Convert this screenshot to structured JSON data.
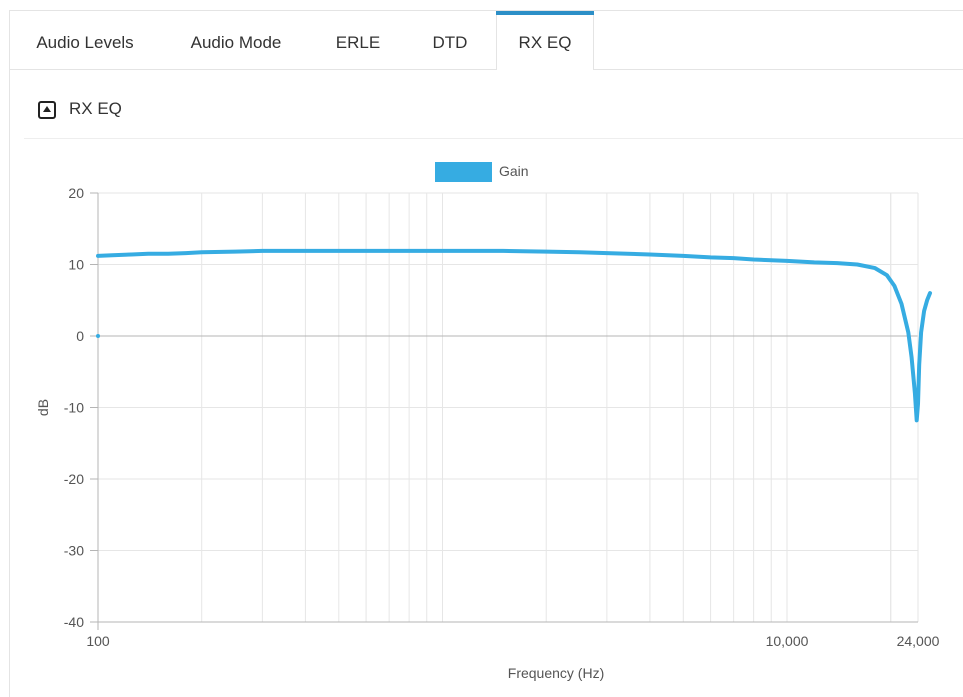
{
  "tabs": [
    {
      "label": "Audio Levels",
      "active": false
    },
    {
      "label": "Audio Mode",
      "active": false
    },
    {
      "label": "ERLE",
      "active": false
    },
    {
      "label": "DTD",
      "active": false
    },
    {
      "label": "RX EQ",
      "active": true
    }
  ],
  "section": {
    "title": "RX EQ",
    "icon": "collapse-up-icon"
  },
  "colors": {
    "accent": "#2c8fc7",
    "series": "#36ace2",
    "grid": "#e6e6e6",
    "zero_line": "#b5b5b5"
  },
  "chart_data": {
    "type": "line",
    "xlabel": "Frequency (Hz)",
    "ylabel": "dB",
    "x_scale": "log",
    "xlim": [
      100,
      27000
    ],
    "ylim": [
      -40,
      20
    ],
    "x_ticks": [
      100,
      10000,
      24000
    ],
    "x_tick_labels": [
      "100",
      "10,000",
      "24,000"
    ],
    "y_ticks": [
      20,
      10,
      0,
      -10,
      -20,
      -30,
      -40
    ],
    "grid": true,
    "legend_position": "top-center",
    "series": [
      {
        "name": "Gain",
        "color": "#36ace2",
        "points": [
          [
            100,
            11.2
          ],
          [
            110,
            11.3
          ],
          [
            125,
            11.4
          ],
          [
            140,
            11.5
          ],
          [
            160,
            11.5
          ],
          [
            180,
            11.6
          ],
          [
            200,
            11.7
          ],
          [
            250,
            11.8
          ],
          [
            300,
            11.9
          ],
          [
            400,
            11.9
          ],
          [
            600,
            11.9
          ],
          [
            1000,
            11.9
          ],
          [
            1500,
            11.9
          ],
          [
            2000,
            11.8
          ],
          [
            2500,
            11.7
          ],
          [
            3000,
            11.6
          ],
          [
            4000,
            11.4
          ],
          [
            5000,
            11.2
          ],
          [
            6000,
            11.0
          ],
          [
            7000,
            10.9
          ],
          [
            8000,
            10.7
          ],
          [
            10000,
            10.5
          ],
          [
            12000,
            10.3
          ],
          [
            14000,
            10.2
          ],
          [
            16000,
            10.0
          ],
          [
            18000,
            9.5
          ],
          [
            19500,
            8.5
          ],
          [
            20500,
            7.0
          ],
          [
            21500,
            4.5
          ],
          [
            22500,
            0.5
          ],
          [
            23000,
            -3.0
          ],
          [
            23500,
            -8.0
          ],
          [
            23800,
            -11.8
          ],
          [
            24000,
            -9.5
          ],
          [
            24200,
            -4.0
          ],
          [
            24500,
            0.5
          ],
          [
            25000,
            3.5
          ],
          [
            25500,
            5.0
          ],
          [
            26000,
            6.0
          ]
        ]
      }
    ]
  }
}
